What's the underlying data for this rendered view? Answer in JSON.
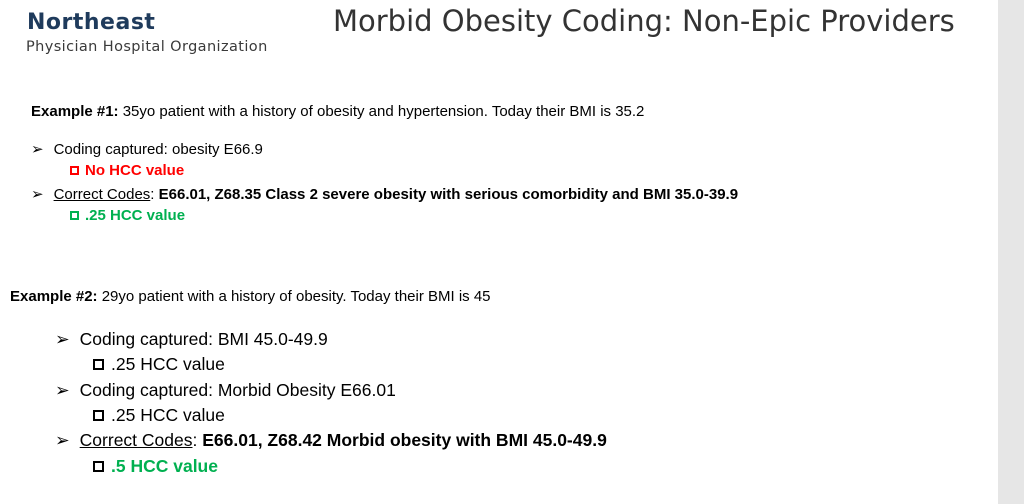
{
  "header": {
    "logo_main": "Northeast",
    "logo_sub": "Physician Hospital Organization",
    "title": "Morbid Obesity Coding: Non-Epic Providers"
  },
  "example1": {
    "label": "Example #1:",
    "text": " 35yo patient with a history of obesity and hypertension. Today their BMI is 35.2",
    "b1": "Coding captured: obesity E66.9",
    "b1_sub": "No HCC value",
    "b2_label": "Correct Codes",
    "b2_colon": ": ",
    "b2_codes": "E66.01, Z68.35 Class 2 severe obesity with serious comorbidity and BMI 35.0-39.9",
    "b2_sub": ".25 HCC value"
  },
  "example2": {
    "label": "Example #2:",
    "text": " 29yo patient with a history of obesity. Today their BMI is 45",
    "b1": "Coding captured: BMI 45.0-49.9",
    "b1_sub": ".25 HCC value",
    "b2": "Coding captured: Morbid Obesity E66.01",
    "b2_sub": ".25 HCC value",
    "b3_label": "Correct Codes",
    "b3_colon": ": ",
    "b3_codes": "E66.01, Z68.42 Morbid obesity with BMI 45.0-49.9",
    "b3_sub": ".5 HCC value"
  },
  "glyphs": {
    "arrow": "➢"
  },
  "colors": {
    "logo": "#1f3b5c",
    "red": "#ff0000",
    "green": "#00b050",
    "scrollbar": "#e6e6e6"
  }
}
